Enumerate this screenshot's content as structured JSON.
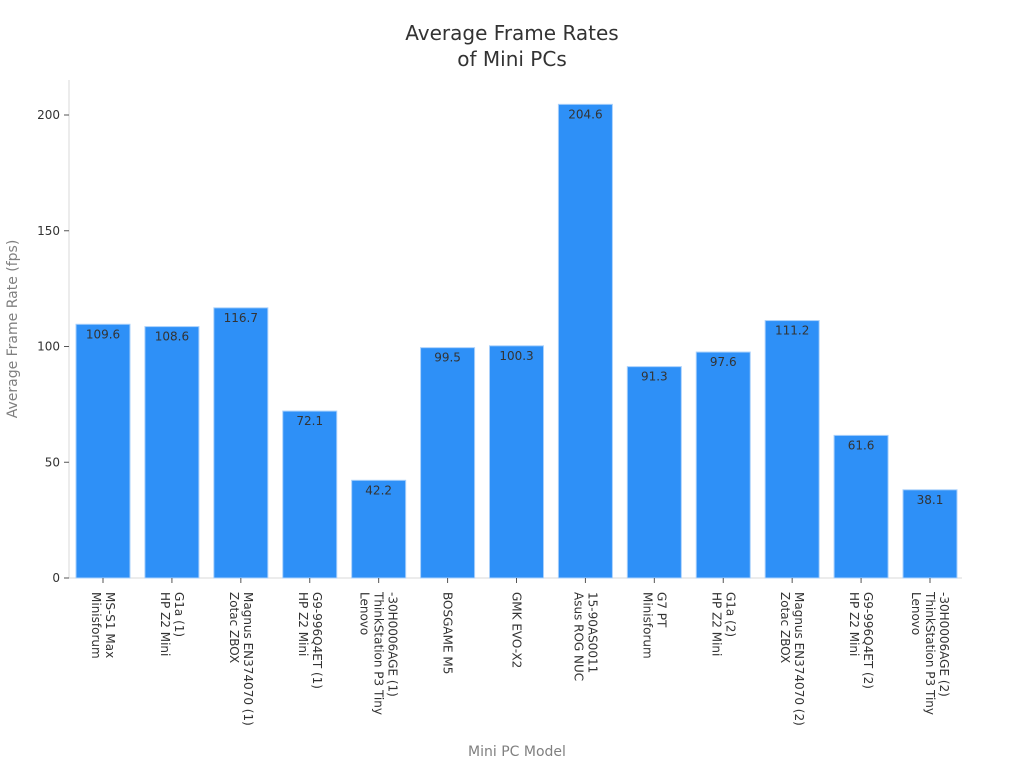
{
  "chart_data": {
    "type": "bar",
    "title": [
      "Average Frame Rates",
      "of Mini PCs"
    ],
    "xlabel": "Mini PC Model",
    "ylabel": "Average Frame Rate (fps)",
    "ylim": [
      0,
      215
    ],
    "yticks": [
      0,
      50,
      100,
      150,
      200
    ],
    "grid": false,
    "bar_color": "#2e90f7",
    "bar_edge_color": "#a9d0fb",
    "categories": [
      [
        "Minisforum",
        "MS-S1 Max"
      ],
      [
        "HP Z2 Mini",
        "G1a (1)"
      ],
      [
        "Zotac ZBOX",
        "Magnus EN374070 (1)"
      ],
      [
        "HP Z2 Mini",
        "G9-996Q4ET (1)"
      ],
      [
        "Lenovo",
        "ThinkStation P3 Tiny",
        "-30H0006AGE (1)"
      ],
      [
        "BOSGAME M5"
      ],
      [
        "GMK EVO-X2"
      ],
      [
        "Asus ROG NUC",
        "15-90AS0011"
      ],
      [
        "Minisforum",
        "G7 PT"
      ],
      [
        "HP Z2 Mini",
        "G1a (2)"
      ],
      [
        "Zotac ZBOX",
        "Magnus EN374070 (2)"
      ],
      [
        "HP Z2 Mini",
        "G9-996Q4ET (2)"
      ],
      [
        "Lenovo",
        "ThinkStation P3 Tiny",
        "-30H0006AGE (2)"
      ]
    ],
    "values": [
      109.6,
      108.6,
      116.7,
      72.1,
      42.2,
      99.5,
      100.3,
      204.6,
      91.3,
      97.6,
      111.2,
      61.6,
      38.1
    ],
    "data_labels": [
      "109.6",
      "108.6",
      "116.7",
      "72.1",
      "42.2",
      "99.5",
      "100.3",
      "204.6",
      "91.3",
      "97.6",
      "111.2",
      "61.6",
      "38.1"
    ]
  }
}
